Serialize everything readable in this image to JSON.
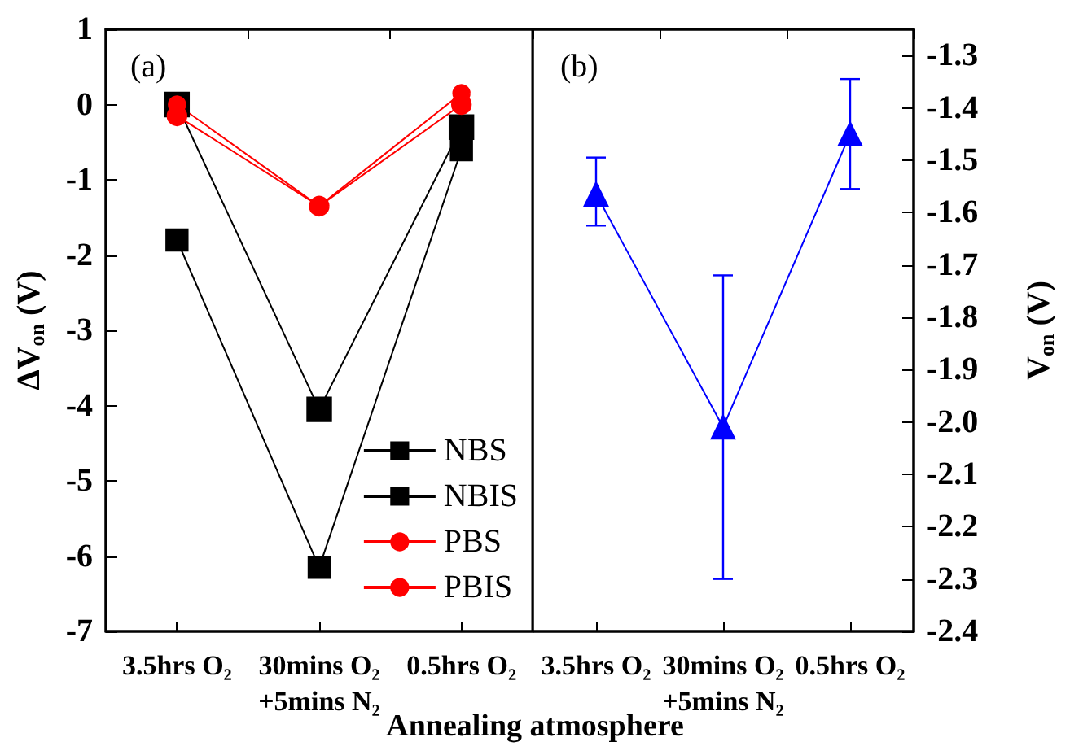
{
  "chart_data": [
    {
      "type": "line",
      "title": "(a)",
      "xlabel": "Annealing atmosphere",
      "ylabel": "ΔV$_{on}$ (V)",
      "categories": [
        "3.5hrs O₂",
        "30mins O₂\n+5mins N₂",
        "0.5hrs O₂"
      ],
      "series": [
        {
          "name": "NBS",
          "color": "#000000",
          "marker": "square",
          "values": [
            0.0,
            -4.05,
            -0.3
          ]
        },
        {
          "name": "NBIS",
          "color": "#000000",
          "marker": "square",
          "values": [
            -1.8,
            -6.15,
            -0.6
          ]
        },
        {
          "name": "PBS",
          "color": "#ff0000",
          "marker": "circle",
          "values": [
            -0.15,
            -1.35,
            0.0
          ]
        },
        {
          "name": "PBIS",
          "color": "#ff0000",
          "marker": "circle",
          "values": [
            0.0,
            -1.35,
            0.15
          ]
        }
      ],
      "ylim": [
        -7,
        1
      ],
      "yticks": [
        -7,
        -6,
        -5,
        -4,
        -3,
        -2,
        -1,
        0,
        1
      ],
      "grid": false,
      "legend": "bottom right",
      "line_style": "solid"
    },
    {
      "type": "line",
      "title": "(b)",
      "ylabel": "V$_{on}$ (V)",
      "categories": [
        "3.5hrs O₂",
        "30mins O₂\n+5mins N₂",
        "0.5hrs O₂"
      ],
      "series": [
        {
          "color": "#0000ff",
          "marker": "triangle",
          "values": [
            -1.565,
            -2.01,
            -1.45
          ],
          "errors": [
            [
              -1.625,
              -1.495
            ],
            [
              -2.3,
              -1.72
            ],
            [
              -1.555,
              -1.345
            ]
          ]
        }
      ],
      "ylim": [
        -2.4,
        -1.25
      ],
      "yticks": [
        -2.4,
        -2.3,
        -2.2,
        -2.1,
        {
          "value": -2.0,
          "label": "-2.0"
        },
        -1.9,
        -1.8,
        -1.7,
        -1.6,
        -1.5,
        -1.4,
        -1.3
      ],
      "grid": false,
      "legend": false,
      "line_style": "solid"
    }
  ]
}
